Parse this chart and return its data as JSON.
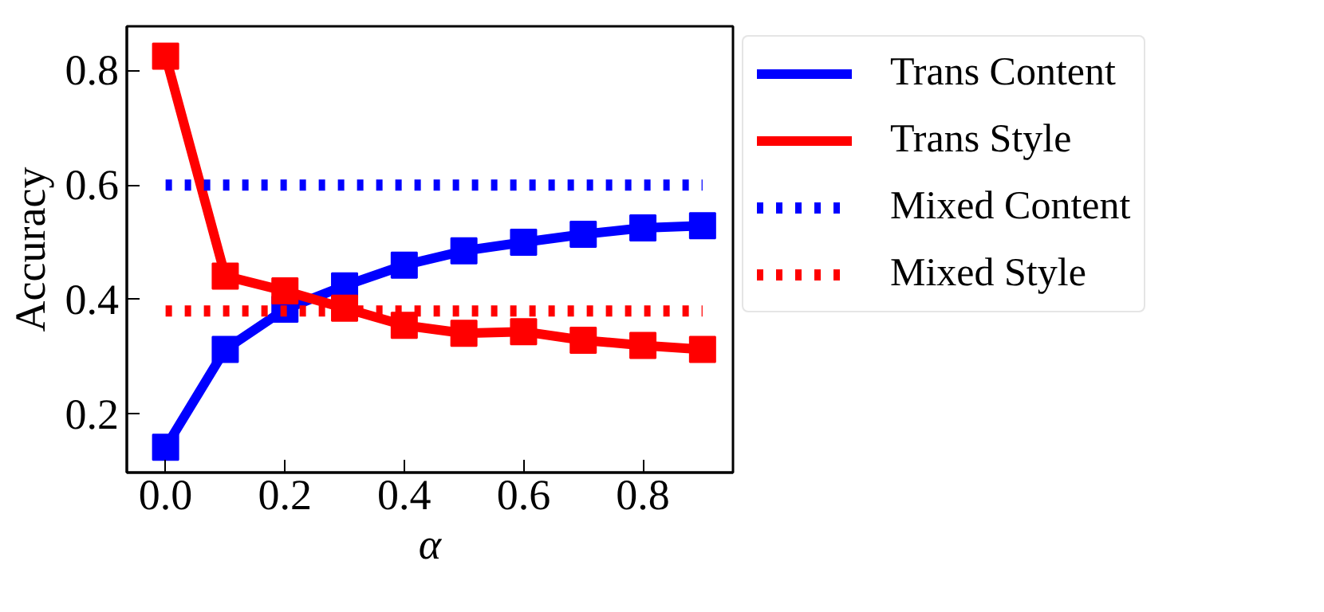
{
  "chart_data": {
    "type": "line",
    "xlabel": "α",
    "ylabel": "Accuracy",
    "x": [
      0.0,
      0.1,
      0.2,
      0.3,
      0.4,
      0.5,
      0.6,
      0.7,
      0.8,
      0.9
    ],
    "series": [
      {
        "name": "Trans Content",
        "color": "#0000ff",
        "marker": "square",
        "line_style": "solid",
        "values": [
          0.142,
          0.313,
          0.383,
          0.424,
          0.46,
          0.485,
          0.5,
          0.514,
          0.525,
          0.529
        ]
      },
      {
        "name": "Trans Style",
        "color": "#ff0000",
        "marker": "square",
        "line_style": "solid",
        "values": [
          0.825,
          0.441,
          0.415,
          0.385,
          0.355,
          0.341,
          0.344,
          0.329,
          0.32,
          0.313
        ]
      },
      {
        "name": "Mixed Content",
        "color": "#0000ff",
        "marker": "none",
        "line_style": "dotted",
        "values": [
          0.6,
          0.6,
          0.6,
          0.6,
          0.6,
          0.6,
          0.6,
          0.6,
          0.6,
          0.6
        ]
      },
      {
        "name": "Mixed Style",
        "color": "#ff0000",
        "marker": "none",
        "line_style": "dotted",
        "values": [
          0.38,
          0.38,
          0.38,
          0.38,
          0.38,
          0.38,
          0.38,
          0.38,
          0.38,
          0.38
        ]
      }
    ],
    "xlim": [
      -0.065,
      0.951
    ],
    "ylim": [
      0.098,
      0.877
    ],
    "xticks": [
      {
        "value": 0.0,
        "label": "0.0"
      },
      0.2,
      0.4,
      0.6,
      0.8
    ],
    "yticks": [
      0.2,
      0.4,
      0.6,
      0.8
    ],
    "grid": false,
    "legend": "right"
  }
}
